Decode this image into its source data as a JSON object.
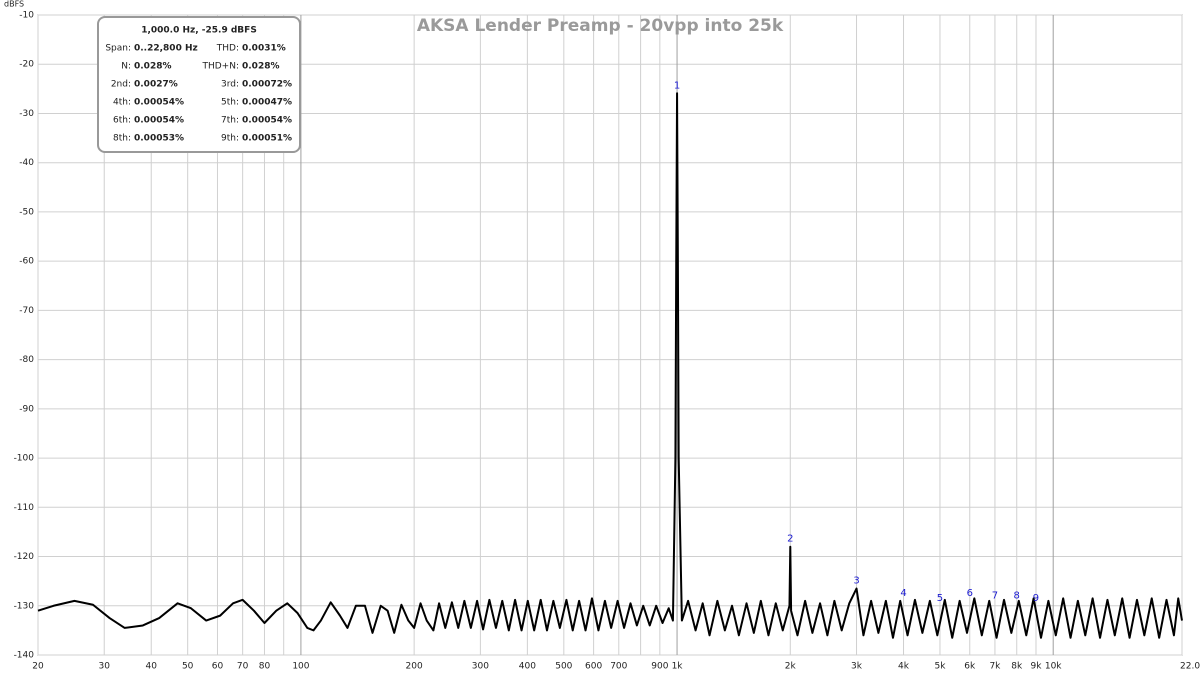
{
  "chart_data": {
    "type": "line",
    "title": "AKSA Lender Preamp - 20vpp into 25k",
    "y_label": "dBFS",
    "color": "#000000",
    "log_x": true,
    "grid": true,
    "xlim": [
      20,
      22000
    ],
    "ylim": [
      -140,
      -10
    ],
    "yticks": [
      -140,
      -130,
      -120,
      -110,
      -100,
      -90,
      -80,
      -70,
      -60,
      -50,
      -40,
      -30,
      -20,
      -10
    ],
    "xticks": [
      20,
      30,
      40,
      50,
      60,
      70,
      80,
      {
        "value": 90,
        "label": null
      },
      100,
      200,
      300,
      400,
      500,
      600,
      700,
      {
        "value": 800,
        "label": null
      },
      900,
      {
        "value": 1000,
        "label": "1k"
      },
      {
        "value": 2000,
        "label": "2k"
      },
      {
        "value": 3000,
        "label": "3k"
      },
      {
        "value": 4000,
        "label": "4k"
      },
      {
        "value": 5000,
        "label": "5k"
      },
      {
        "value": 6000,
        "label": "6k"
      },
      {
        "value": 7000,
        "label": "7k"
      },
      {
        "value": 8000,
        "label": "8k"
      },
      {
        "value": 9000,
        "label": "9k"
      },
      {
        "value": 10000,
        "label": "10k"
      },
      {
        "value": 22000,
        "label": "22.0k Hz"
      }
    ],
    "x": [
      20,
      22,
      25,
      28,
      31,
      34,
      38,
      42,
      47,
      51,
      56,
      61,
      66,
      70,
      75,
      80,
      86,
      92,
      98,
      104,
      108,
      113,
      120,
      127,
      133,
      140,
      148,
      155,
      163,
      170,
      177,
      185,
      193,
      200,
      208,
      216,
      225,
      233,
      242,
      252,
      262,
      272,
      283,
      294,
      305,
      317,
      330,
      343,
      357,
      371,
      386,
      401,
      417,
      434,
      451,
      469,
      488,
      508,
      528,
      549,
      571,
      594,
      618,
      643,
      668,
      695,
      723,
      752,
      782,
      813,
      846,
      880,
      915,
      950,
      975,
      990,
      995,
      1000,
      1005,
      1010,
      1030,
      1070,
      1120,
      1170,
      1220,
      1280,
      1340,
      1400,
      1460,
      1530,
      1600,
      1670,
      1750,
      1830,
      1910,
      1990,
      2000,
      2010,
      2090,
      2190,
      2290,
      2400,
      2510,
      2620,
      2740,
      2870,
      3000,
      3130,
      3280,
      3430,
      3590,
      3750,
      3920,
      4100,
      4290,
      4490,
      4700,
      4920,
      5150,
      5390,
      5640,
      5900,
      6170,
      6460,
      6760,
      7070,
      7400,
      7740,
      8100,
      8480,
      8870,
      9280,
      9710,
      10160,
      10630,
      11120,
      11630,
      12170,
      12730,
      13320,
      13940,
      14580,
      15260,
      15960,
      16700,
      17470,
      18280,
      19130,
      20010,
      20940,
      21500,
      22000
    ],
    "values": [
      -131,
      -130,
      -129,
      -129.8,
      -132.5,
      -134.5,
      -134,
      -132.5,
      -129.5,
      -130.5,
      -133,
      -132,
      -129.5,
      -128.8,
      -131,
      -133.5,
      -131,
      -129.5,
      -131.5,
      -134.5,
      -135,
      -133,
      -129.3,
      -132,
      -134.5,
      -130,
      -130,
      -135.5,
      -130,
      -131,
      -135.5,
      -129.8,
      -133,
      -134.5,
      -129.5,
      -133,
      -135,
      -129.5,
      -134.5,
      -129.3,
      -134.5,
      -129,
      -134.5,
      -129,
      -134.8,
      -128.8,
      -134.5,
      -129,
      -135,
      -128.8,
      -135,
      -129,
      -135,
      -128.8,
      -135,
      -129,
      -134.5,
      -128.8,
      -135,
      -129,
      -135,
      -128.5,
      -135,
      -129,
      -134.5,
      -129,
      -134.5,
      -129.5,
      -134,
      -130,
      -134,
      -130,
      -133.5,
      -130.5,
      -133,
      -100,
      -60,
      -25.9,
      -60,
      -100,
      -133,
      -129,
      -135,
      -129.5,
      -136,
      -129,
      -135,
      -130,
      -136,
      -129.5,
      -135.5,
      -129,
      -136,
      -129.5,
      -135,
      -130,
      -118,
      -131,
      -136,
      -129,
      -135.5,
      -129.5,
      -136,
      -129,
      -135,
      -129.5,
      -126.5,
      -136,
      -129,
      -135.5,
      -129,
      -136.5,
      -129,
      -136,
      -128.8,
      -135.5,
      -129,
      -136,
      -128.8,
      -136.5,
      -129,
      -135.5,
      -128.5,
      -136,
      -129,
      -136.5,
      -128.8,
      -135.5,
      -129,
      -136,
      -128.5,
      -136.5,
      -129,
      -136,
      -128.5,
      -136.5,
      -129,
      -136,
      -128.5,
      -136.5,
      -128.8,
      -136,
      -128.5,
      -136.5,
      -128.8,
      -136,
      -128.5,
      -136.5,
      -128.8,
      -136,
      -128.5,
      -133
    ],
    "markers": {
      "color": "#1a1ad0",
      "labels": [
        "1",
        "2",
        "3",
        "4",
        "5",
        "6",
        "7",
        "8",
        "9"
      ],
      "x": [
        1000,
        2000,
        3000,
        4000,
        5000,
        6000,
        7000,
        8000,
        9000
      ],
      "values": [
        -25.9,
        -118,
        -126.5,
        -129,
        -130,
        -129,
        -129.5,
        -129.5,
        -130
      ]
    },
    "info_box": {
      "header": "1,000.0 Hz, -25.9 dBFS",
      "rows": [
        [
          "Span:",
          "0..22,800 Hz",
          "THD:",
          "0.0031%"
        ],
        [
          "N:",
          "0.028%",
          "THD+N:",
          "0.028%"
        ],
        [
          "2nd:",
          "0.0027%",
          "3rd:",
          "0.00072%"
        ],
        [
          "4th:",
          "0.00054%",
          "5th:",
          "0.00047%"
        ],
        [
          "6th:",
          "0.00054%",
          "7th:",
          "0.00054%"
        ],
        [
          "8th:",
          "0.00053%",
          "9th:",
          "0.00051%"
        ]
      ]
    }
  }
}
